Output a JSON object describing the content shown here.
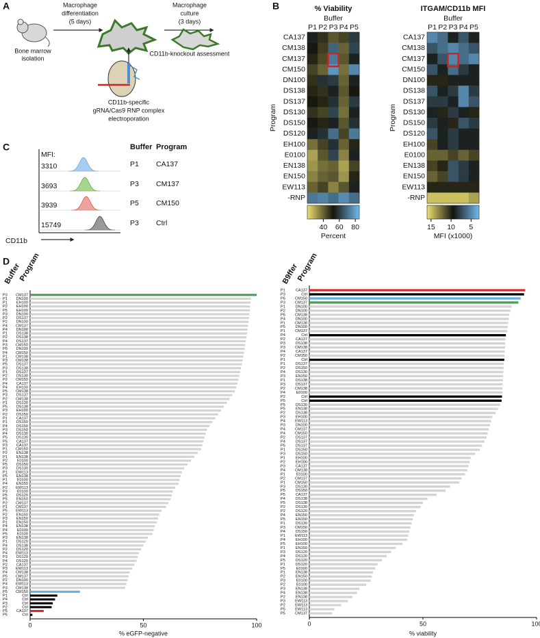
{
  "panel_a": {
    "letter": "A",
    "step1": [
      "Macrophage",
      "differentiation",
      "(5 days)"
    ],
    "step2": [
      "Macrophage",
      "culture",
      "(3 days)"
    ],
    "start": [
      "Bone marrow",
      "isolation"
    ],
    "end": "CD11b-knockout assessment",
    "reagent": [
      "CD11b-specific",
      "gRNA/Cas9 RNP complex",
      "electroporation"
    ]
  },
  "panel_b": {
    "letter": "B",
    "heatmaps": [
      {
        "title": "% Viability",
        "column_title": "Buffer",
        "columns": [
          "P1",
          "P2",
          "P3",
          "P4",
          "P5"
        ],
        "row_title": "Program",
        "rows": [
          "CA137",
          "CM138",
          "CM137",
          "CM150",
          "DN100",
          "DS138",
          "DS137",
          "DS130",
          "DS150",
          "DS120",
          "EH100",
          "E0100",
          "EN138",
          "EN150",
          "EW113",
          "-RNP"
        ],
        "values": [
          [
            55,
            48,
            42,
            45,
            60
          ],
          [
            52,
            46,
            68,
            40,
            62
          ],
          [
            50,
            44,
            72,
            42,
            55
          ],
          [
            45,
            40,
            78,
            38,
            75
          ],
          [
            48,
            58,
            60,
            40,
            55
          ],
          [
            50,
            48,
            55,
            42,
            52
          ],
          [
            52,
            50,
            58,
            40,
            60
          ],
          [
            48,
            45,
            62,
            38,
            55
          ],
          [
            52,
            50,
            55,
            42,
            58
          ],
          [
            55,
            58,
            70,
            45,
            72
          ],
          [
            38,
            45,
            58,
            40,
            50
          ],
          [
            30,
            42,
            62,
            35,
            55
          ],
          [
            32,
            38,
            40,
            30,
            45
          ],
          [
            35,
            40,
            42,
            32,
            50
          ],
          [
            40,
            45,
            35,
            42,
            55
          ],
          [
            72,
            74,
            70,
            76,
            70
          ]
        ],
        "colormap": [
          "#ece070",
          "#15150f",
          "#72baf0"
        ],
        "clim": [
          20,
          85
        ],
        "cticks": [
          40,
          60,
          80
        ],
        "clabel": "Percent"
      },
      {
        "title": "ITGAM/CD11b MFI",
        "column_title": "Buffer",
        "columns": [
          "P1",
          "P2",
          "P3",
          "P4",
          "P5"
        ],
        "row_title": "Program",
        "rows": [
          "CA137",
          "CM138",
          "CM137",
          "CM150",
          "DN100",
          "DS138",
          "DS137",
          "DS130",
          "DS150",
          "DS120",
          "EH100",
          "E0100",
          "EN138",
          "EN150",
          "EW113",
          "-RNP"
        ],
        "values": [
          [
            5,
            6,
            9,
            7,
            9
          ],
          [
            7,
            6,
            5,
            6,
            7
          ],
          [
            9,
            7,
            5,
            6,
            5
          ],
          [
            7,
            9,
            6,
            8,
            9
          ],
          [
            10,
            10,
            9,
            9,
            9
          ],
          [
            7,
            9,
            8,
            5,
            8
          ],
          [
            8,
            8,
            9,
            5,
            7
          ],
          [
            9,
            10,
            8,
            9,
            10
          ],
          [
            8,
            9,
            10,
            7,
            8
          ],
          [
            7,
            9,
            8,
            9,
            9
          ],
          [
            11,
            9,
            8,
            9,
            9
          ],
          [
            12,
            12,
            11,
            12,
            11
          ],
          [
            11,
            10,
            7,
            8,
            9
          ],
          [
            12,
            11,
            7,
            8,
            9
          ],
          [
            10,
            10,
            10,
            10,
            10
          ],
          [
            15,
            15,
            15,
            15,
            14
          ]
        ],
        "colormap": [
          "#ece070",
          "#15150f",
          "#72baf0"
        ],
        "clim": [
          16,
          3
        ],
        "cticks": [
          15,
          10,
          5
        ],
        "clabel": "MFI (x1000)"
      }
    ]
  },
  "panel_c": {
    "letter": "C",
    "mfi_title": "MFI:",
    "buffer_title": "Buffer",
    "program_title": "Program",
    "rows": [
      {
        "mfi": 3310,
        "buffer": "P1",
        "program": "CA137"
      },
      {
        "mfi": 3693,
        "buffer": "P3",
        "program": "CM137"
      },
      {
        "mfi": 3939,
        "buffer": "P5",
        "program": "CM150"
      },
      {
        "mfi": 15749,
        "buffer": "P3",
        "program": "Ctrl"
      }
    ],
    "xlabel": "CD11b"
  },
  "panel_d": {
    "letter": "D"
  },
  "chart_data": [
    {
      "type": "bar",
      "orientation": "horizontal",
      "buffer_title": "Buffer",
      "category_title": "Program",
      "buffers": [
        "P3",
        "P1",
        "P1",
        "P2",
        "P5",
        "P3",
        "P2",
        "P2",
        "P4",
        "P4",
        "P1",
        "P2",
        "P4",
        "P3",
        "P5",
        "P4",
        "P1",
        "P3",
        "P5",
        "P3",
        "P1",
        "P2",
        "P2",
        "P4",
        "P4",
        "P5",
        "P3",
        "P2",
        "P1",
        "P5",
        "P3",
        "P2",
        "P1",
        "P1",
        "P4",
        "P3",
        "P4",
        "P5",
        "P5",
        "P3",
        "P1",
        "P2",
        "P1",
        "P2",
        "P5",
        "P3",
        "P1",
        "P5",
        "P1",
        "P4",
        "P2",
        "P3",
        "P5",
        "P5",
        "P2",
        "P1",
        "P5",
        "P2",
        "P3",
        "P1",
        "P4",
        "P4",
        "P5",
        "P3",
        "P1",
        "P4",
        "P2",
        "P4",
        "P3",
        "P4",
        "P2",
        "P3",
        "P4",
        "P5",
        "P2",
        "P4",
        "P3",
        "P5",
        "P1",
        "P4",
        "P3",
        "P2",
        "P5",
        "P5"
      ],
      "categories": [
        "CM137",
        "DN100",
        "EH100",
        "EH100",
        "EH100",
        "DN100",
        "DS137",
        "DN100",
        "CM137",
        "DN100",
        "DS138",
        "DS138",
        "DS137",
        "CM150",
        "DN100",
        "CM150",
        "CM138",
        "CM138",
        "DS137",
        "DS138",
        "DS137",
        "DS130",
        "CM150",
        "CA137",
        "EH100",
        "CM138",
        "DS137",
        "CM138",
        "DS130",
        "DS138",
        "EH100",
        "DS150",
        "CA137",
        "DS150",
        "DS150",
        "DS150",
        "DS130",
        "DS130",
        "CA137",
        "CA137",
        "CM150",
        "EN138",
        "EN138",
        "E0100",
        "DS150",
        "DS130",
        "EW113",
        "EN138",
        "E0100",
        "EN150",
        "EW113",
        "E0100",
        "DS120",
        "EN150",
        "CM137",
        "CM137",
        "EW113",
        "EN150",
        "EN150",
        "EN150",
        "EN138",
        "E0100",
        "E0100",
        "EN138",
        "DS120",
        "DS138",
        "DS120",
        "EW113",
        "DS120",
        "DS120",
        "CA137",
        "EW113",
        "CM138",
        "CM137",
        "DN100",
        "EW113",
        "CM138",
        "CM150",
        "Ctrl",
        "Ctrl",
        "Ctrl",
        "Ctrl",
        "CA137",
        "Ctrl"
      ],
      "values": [
        100,
        97.5,
        97.3,
        97.1,
        97,
        96.8,
        96.6,
        96.4,
        96.2,
        96,
        95.8,
        95.5,
        95.2,
        95,
        94.7,
        94.4,
        94.1,
        93.8,
        93.5,
        93.1,
        92.7,
        92.3,
        91.9,
        91.5,
        91,
        90.4,
        89.2,
        88,
        86.8,
        85.5,
        84.3,
        83,
        81.8,
        80.5,
        79.2,
        78,
        77.5,
        77,
        76.5,
        76,
        75.5,
        74,
        72.5,
        71,
        69.5,
        68,
        67,
        66.5,
        66,
        65.5,
        64,
        63,
        62.5,
        62,
        61,
        60,
        58,
        57,
        56.5,
        56,
        55,
        54.5,
        54,
        52,
        51,
        50,
        49,
        48,
        47.5,
        47,
        46,
        45,
        44,
        43.5,
        43,
        42.5,
        42,
        22,
        12,
        11,
        10,
        9.5,
        6,
        1
      ],
      "colors": [
        "#4e9a5c",
        "#d3d3d3",
        "#d3d3d3",
        "#d3d3d3",
        "#d3d3d3",
        "#d3d3d3",
        "#d3d3d3",
        "#d3d3d3",
        "#d3d3d3",
        "#d3d3d3",
        "#d3d3d3",
        "#d3d3d3",
        "#d3d3d3",
        "#d3d3d3",
        "#d3d3d3",
        "#d3d3d3",
        "#d3d3d3",
        "#d3d3d3",
        "#d3d3d3",
        "#d3d3d3",
        "#d3d3d3",
        "#d3d3d3",
        "#d3d3d3",
        "#d3d3d3",
        "#d3d3d3",
        "#d3d3d3",
        "#d3d3d3",
        "#d3d3d3",
        "#d3d3d3",
        "#d3d3d3",
        "#d3d3d3",
        "#d3d3d3",
        "#d3d3d3",
        "#d3d3d3",
        "#d3d3d3",
        "#d3d3d3",
        "#d3d3d3",
        "#d3d3d3",
        "#d3d3d3",
        "#d3d3d3",
        "#d3d3d3",
        "#d3d3d3",
        "#d3d3d3",
        "#d3d3d3",
        "#d3d3d3",
        "#d3d3d3",
        "#d3d3d3",
        "#d3d3d3",
        "#d3d3d3",
        "#d3d3d3",
        "#d3d3d3",
        "#d3d3d3",
        "#d3d3d3",
        "#d3d3d3",
        "#d3d3d3",
        "#d3d3d3",
        "#d3d3d3",
        "#d3d3d3",
        "#d3d3d3",
        "#d3d3d3",
        "#d3d3d3",
        "#d3d3d3",
        "#d3d3d3",
        "#d3d3d3",
        "#d3d3d3",
        "#d3d3d3",
        "#d3d3d3",
        "#d3d3d3",
        "#d3d3d3",
        "#d3d3d3",
        "#d3d3d3",
        "#d3d3d3",
        "#d3d3d3",
        "#d3d3d3",
        "#d3d3d3",
        "#d3d3d3",
        "#d3d3d3",
        "#5eb0e5",
        "#000000",
        "#000000",
        "#000000",
        "#000000",
        "#e0242c",
        "#000000"
      ],
      "xlim": [
        0,
        100
      ],
      "xticks": [
        0,
        50,
        100
      ],
      "xlabel": "% eGFP-negative"
    },
    {
      "type": "bar",
      "orientation": "horizontal",
      "buffer_title": "B9ffer",
      "category_title": "Program",
      "buffers": [
        "P1",
        "P3",
        "P5",
        "P3",
        "P1",
        "P2",
        "P5",
        "P4",
        "P1",
        "P5",
        "P1",
        "P4",
        "P2",
        "P3",
        "P3",
        "P4",
        "P2",
        "P1",
        "P1",
        "P2",
        "P4",
        "P3",
        "P1",
        "P3",
        "P2",
        "P4",
        "P2",
        "P5",
        "P5",
        "P5",
        "P2",
        "P3",
        "P4",
        "P3",
        "P4",
        "P4",
        "P2",
        "P4",
        "P5",
        "P1",
        "P3",
        "P1",
        "P2",
        "P3",
        "P4",
        "P1",
        "P2",
        "P1",
        "P3",
        "P5",
        "P5",
        "P4",
        "P5",
        "P2",
        "P2",
        "P4",
        "P5",
        "P1",
        "P3",
        "P4",
        "P1",
        "P4",
        "P5",
        "P1",
        "P3",
        "P4",
        "P5",
        "P1",
        "P5",
        "P1",
        "P2",
        "P3",
        "P2",
        "P3",
        "P4",
        "P2",
        "P3",
        "P2",
        "P5",
        "P5"
      ],
      "categories": [
        "CA137",
        "Ctrl",
        "CM150",
        "CM137",
        "DN100",
        "DN100",
        "CM138",
        "DN100",
        "CM138",
        "DN100",
        "CM137",
        "Ctrl",
        "CA137",
        "DS138",
        "CM138",
        "CA137",
        "CM150",
        "Ctrl",
        "DS137",
        "DS150",
        "DS130",
        "EN150",
        "DS138",
        "DS137",
        "CM138",
        "E0100",
        "Ctrl",
        "Ctrl",
        "DS130",
        "EN138",
        "DS138",
        "EH100",
        "EW113",
        "DN100",
        "CM137",
        "CM150",
        "DS137",
        "DS137",
        "DS137",
        "DS150",
        "DS150",
        "EH100",
        "EH100",
        "CA137",
        "CM138",
        "E0100",
        "CM137",
        "CM150",
        "DS130",
        "DS150",
        "CA137",
        "DS138",
        "DS138",
        "DS130",
        "DS120",
        "EN150",
        "EN150",
        "DS130",
        "CM150",
        "DS150",
        "EW113",
        "EH100",
        "EH100",
        "EN150",
        "DS120",
        "DS120",
        "DS120",
        "DS120",
        "E0100",
        "EN138",
        "EN150",
        "E0100",
        "E0100",
        "EN138",
        "EN138",
        "EN138",
        "EW113",
        "EW113",
        "EW113",
        "CM137"
      ],
      "values": [
        95,
        94.5,
        93,
        92,
        89,
        88.5,
        88,
        87.8,
        87.5,
        87.3,
        87.1,
        86.5,
        86.3,
        86.2,
        86.1,
        86,
        85.9,
        85.8,
        85.6,
        85.5,
        85.4,
        85.3,
        85.2,
        85.1,
        85,
        84.9,
        84.8,
        84.6,
        84,
        83,
        82,
        80.5,
        80,
        79.5,
        79,
        78.5,
        78,
        77,
        76,
        75,
        73,
        71,
        70.5,
        70,
        69.5,
        68.5,
        67,
        66,
        62,
        60,
        56,
        52,
        50,
        49,
        47,
        46,
        45.5,
        45,
        44.5,
        44,
        43.5,
        43,
        41,
        38,
        36,
        34,
        32,
        30,
        29,
        28,
        27.5,
        27,
        25,
        22,
        21,
        19,
        17,
        14,
        11,
        10
      ],
      "colors": [
        "#e0242c",
        "#000000",
        "#5eb0e5",
        "#4e9a5c",
        "#d3d3d3",
        "#d3d3d3",
        "#d3d3d3",
        "#d3d3d3",
        "#d3d3d3",
        "#d3d3d3",
        "#d3d3d3",
        "#000000",
        "#d3d3d3",
        "#d3d3d3",
        "#d3d3d3",
        "#d3d3d3",
        "#d3d3d3",
        "#000000",
        "#d3d3d3",
        "#d3d3d3",
        "#d3d3d3",
        "#d3d3d3",
        "#d3d3d3",
        "#d3d3d3",
        "#d3d3d3",
        "#d3d3d3",
        "#000000",
        "#000000",
        "#d3d3d3",
        "#d3d3d3",
        "#d3d3d3",
        "#d3d3d3",
        "#d3d3d3",
        "#d3d3d3",
        "#d3d3d3",
        "#d3d3d3",
        "#d3d3d3",
        "#d3d3d3",
        "#d3d3d3",
        "#d3d3d3",
        "#d3d3d3",
        "#d3d3d3",
        "#d3d3d3",
        "#d3d3d3",
        "#d3d3d3",
        "#d3d3d3",
        "#d3d3d3",
        "#d3d3d3",
        "#d3d3d3",
        "#d3d3d3",
        "#d3d3d3",
        "#d3d3d3",
        "#d3d3d3",
        "#d3d3d3",
        "#d3d3d3",
        "#d3d3d3",
        "#d3d3d3",
        "#d3d3d3",
        "#d3d3d3",
        "#d3d3d3",
        "#d3d3d3",
        "#d3d3d3",
        "#d3d3d3",
        "#d3d3d3",
        "#d3d3d3",
        "#d3d3d3",
        "#d3d3d3",
        "#d3d3d3",
        "#d3d3d3",
        "#d3d3d3",
        "#d3d3d3",
        "#d3d3d3",
        "#d3d3d3",
        "#d3d3d3",
        "#d3d3d3",
        "#d3d3d3",
        "#d3d3d3",
        "#d3d3d3",
        "#d3d3d3",
        "#d3d3d3"
      ],
      "xlim": [
        0,
        100
      ],
      "xticks": [
        0,
        50,
        100
      ],
      "xlabel": "% viability"
    }
  ]
}
